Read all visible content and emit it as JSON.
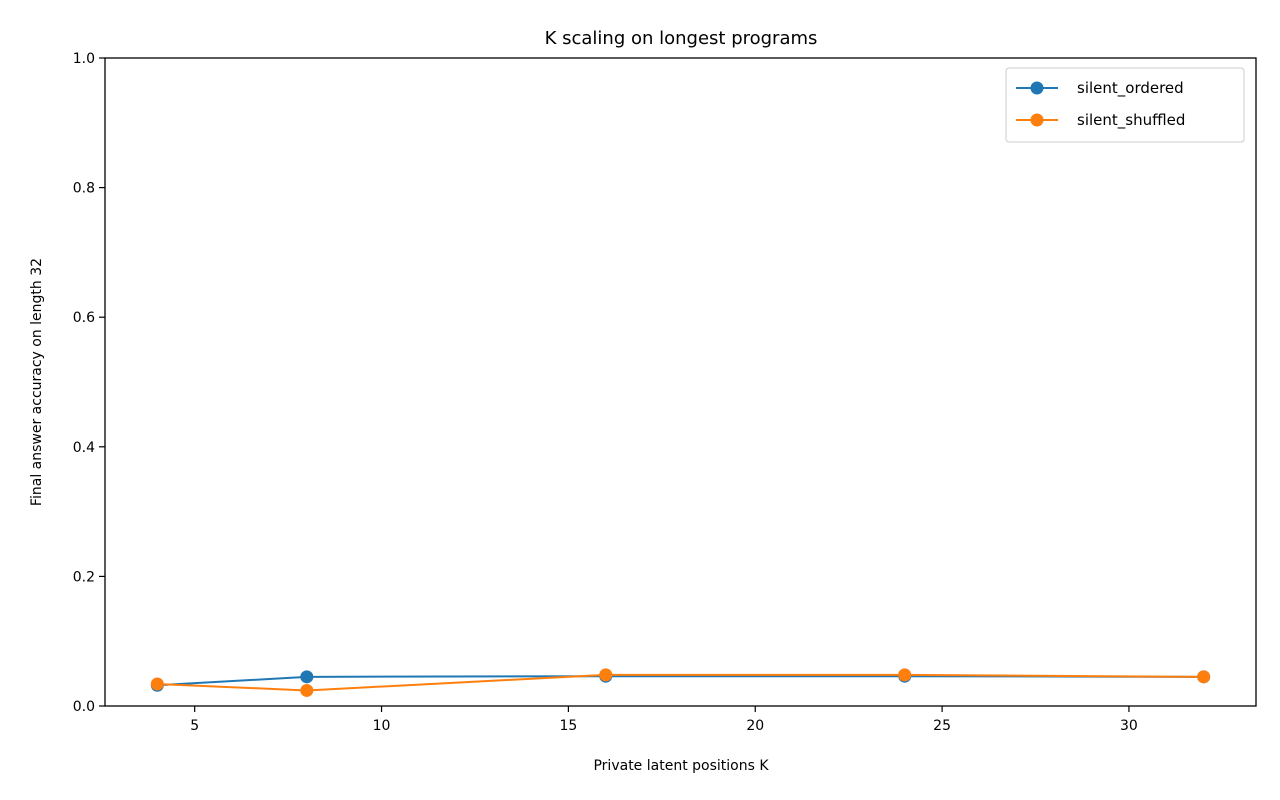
{
  "chart_data": {
    "type": "line",
    "title": "K scaling on longest programs",
    "xlabel": "Private latent positions K",
    "ylabel": "Final answer accuracy on length 32",
    "xlim": [
      2.6,
      33.4
    ],
    "ylim": [
      0.0,
      1.0
    ],
    "xticks": [
      5,
      10,
      15,
      20,
      25,
      30
    ],
    "yticks": [
      0.0,
      0.2,
      0.4,
      0.6,
      0.8,
      1.0
    ],
    "xtick_labels": [
      "5",
      "10",
      "15",
      "20",
      "25",
      "30"
    ],
    "ytick_labels": [
      "0.0",
      "0.2",
      "0.4",
      "0.6",
      "0.8",
      "1.0"
    ],
    "grid": false,
    "legend_position": "top-right",
    "x": [
      4,
      8,
      16,
      24,
      32
    ],
    "series": [
      {
        "name": "silent_ordered",
        "color": "#1f77b4",
        "values": [
          0.032,
          0.045,
          0.046,
          0.046,
          0.045
        ]
      },
      {
        "name": "silent_shuffled",
        "color": "#ff7f0e",
        "values": [
          0.034,
          0.024,
          0.048,
          0.048,
          0.045
        ]
      }
    ]
  }
}
